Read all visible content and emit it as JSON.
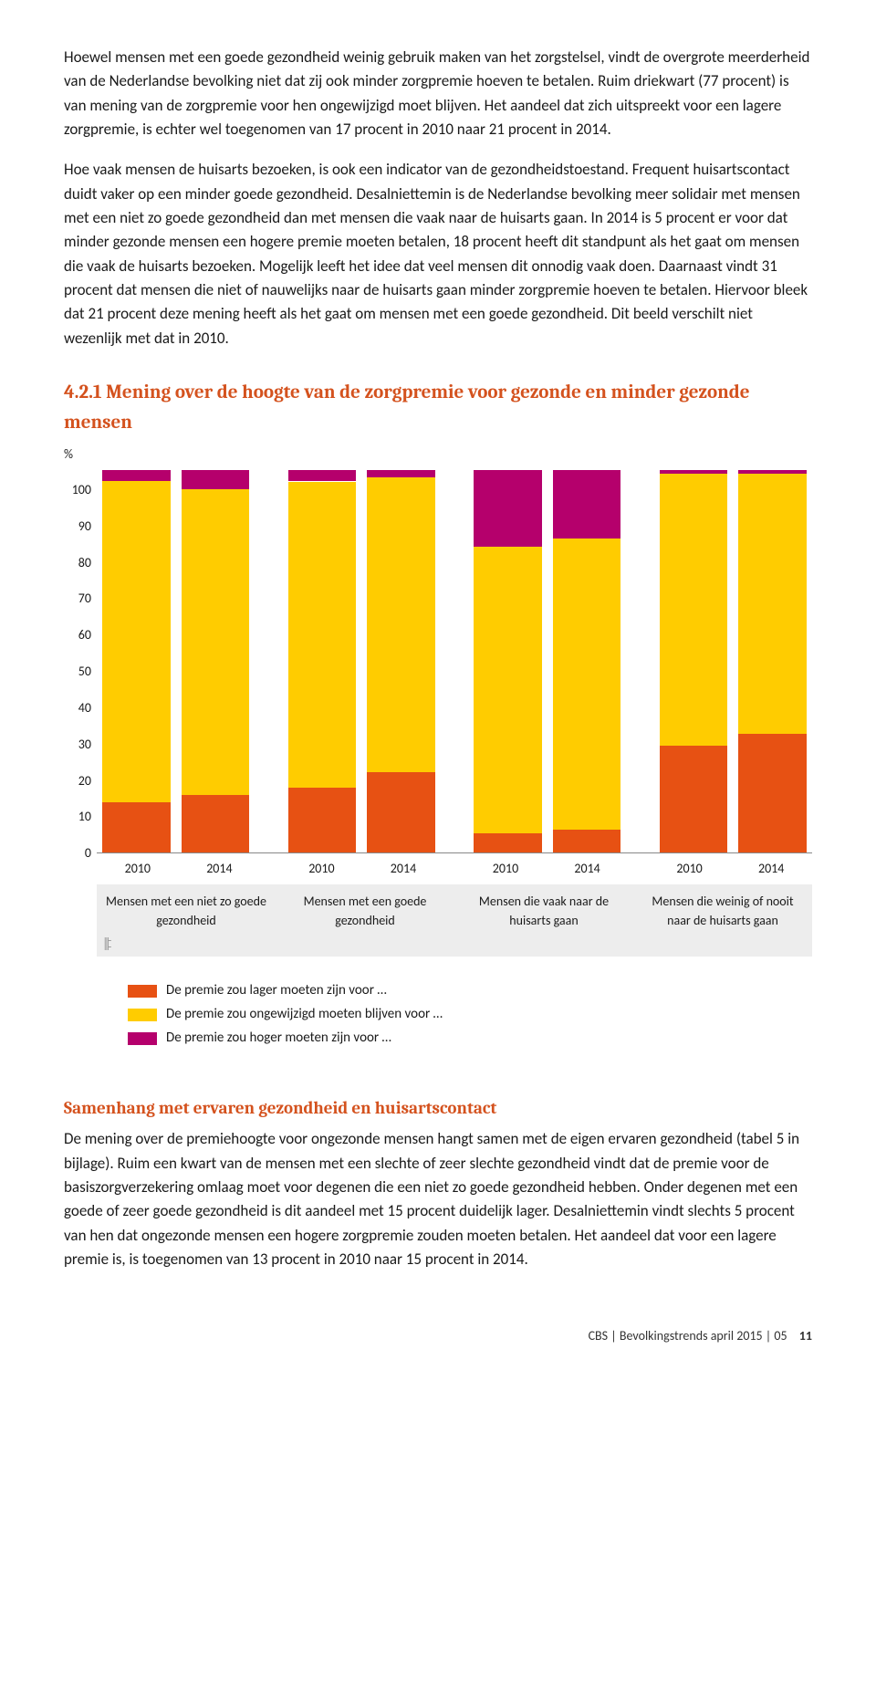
{
  "paragraphs": {
    "p1": "Hoewel mensen met een goede gezondheid weinig gebruik maken van het zorgstelsel, vindt de overgrote meerderheid van de Nederlandse bevolking niet dat zij ook minder zorgpremie hoeven te betalen. Ruim driekwart (77 procent) is van mening van de zorgpremie voor hen ongewijzigd moet blijven. Het aandeel dat zich uitspreekt voor een lagere zorgpremie, is echter wel toegenomen van 17 procent in 2010 naar 21 procent in 2014.",
    "p2": "Hoe vaak mensen de huisarts bezoeken, is ook een indicator van de gezondheidstoestand. Frequent huisartscontact duidt vaker op een minder goede gezondheid. Desalniettemin is de Nederlandse bevolking meer solidair met mensen met een niet zo goede gezondheid dan met mensen die vaak naar de huisarts gaan. In 2014 is 5 procent er voor dat minder gezonde mensen een hogere premie moeten betalen, 18 procent heeft dit standpunt als het gaat om mensen die vaak de huisarts bezoeken. Mogelijk leeft het idee dat veel mensen dit onnodig vaak doen. Daarnaast vindt 31 procent dat mensen die niet of nauwelijks naar de huisarts gaan minder zorgpremie hoeven te betalen. Hiervoor bleek dat 21 procent deze mening heeft als het gaat om mensen met een goede gezondheid. Dit beeld verschilt niet wezenlijk met dat in 2010."
  },
  "section": {
    "number": "4.2.1",
    "title": "Mening over de hoogte van de zorgpremie voor gezonde en minder gezonde mensen"
  },
  "chart": {
    "type": "stacked-bar",
    "ylabel": "%",
    "ylim": [
      0,
      100
    ],
    "ytick_step": 10,
    "background_color": "#ffffff",
    "group_labels": [
      "Mensen met een niet zo goede gezondheid",
      "Mensen met een goede gezondheid",
      "Mensen die vaak naar de huisarts gaan",
      "Mensen die weinig of nooit naar de huisarts gaan"
    ],
    "x_years": [
      "2010",
      "2014",
      "2010",
      "2014",
      "2010",
      "2014",
      "2010",
      "2014"
    ],
    "series_colors": {
      "lower": "#e75113",
      "same": "#ffcc00",
      "higher": "#b5006c"
    },
    "bars": [
      {
        "lower": 13,
        "same": 84,
        "higher": 3
      },
      {
        "lower": 15,
        "same": 80,
        "higher": 5
      },
      {
        "lower": 17,
        "same": 80,
        "higher": 3
      },
      {
        "lower": 21,
        "same": 77,
        "higher": 2
      },
      {
        "lower": 5,
        "same": 75,
        "higher": 20
      },
      {
        "lower": 6,
        "same": 76,
        "higher": 18
      },
      {
        "lower": 28,
        "same": 71,
        "higher": 1
      },
      {
        "lower": 31,
        "same": 68,
        "higher": 1
      }
    ],
    "legend": [
      {
        "color": "#e75113",
        "label": "De premie zou lager moeten zijn voor …"
      },
      {
        "color": "#ffcc00",
        "label": "De premie zou ongewijzigd moeten blijven voor …"
      },
      {
        "color": "#b5006c",
        "label": "De premie zou hoger moeten zijn voor …"
      }
    ]
  },
  "subhead": "Samenhang met ervaren gezondheid en huisartscontact",
  "paragraphs2": {
    "p3": "De mening over de premiehoogte voor ongezonde mensen hangt samen met de eigen ervaren gezondheid (tabel 5 in bijlage). Ruim een kwart van de mensen met een slechte of zeer slechte gezondheid vindt dat de premie voor de basiszorgverzekering omlaag moet voor degenen die een niet zo goede gezondheid hebben. Onder degenen met een goede of zeer goede gezondheid is dit aandeel met 15 procent duidelijk lager. Desalniettemin vindt slechts 5 procent van hen dat ongezonde mensen een hogere zorgpremie zouden moeten betalen. Het aandeel dat voor een lagere premie is, is toegenomen van 13 procent in 2010 naar 15 procent in 2014."
  },
  "footer": {
    "text": "CBS | Bevolkingstrends april 2015 | 05",
    "page": "11"
  }
}
